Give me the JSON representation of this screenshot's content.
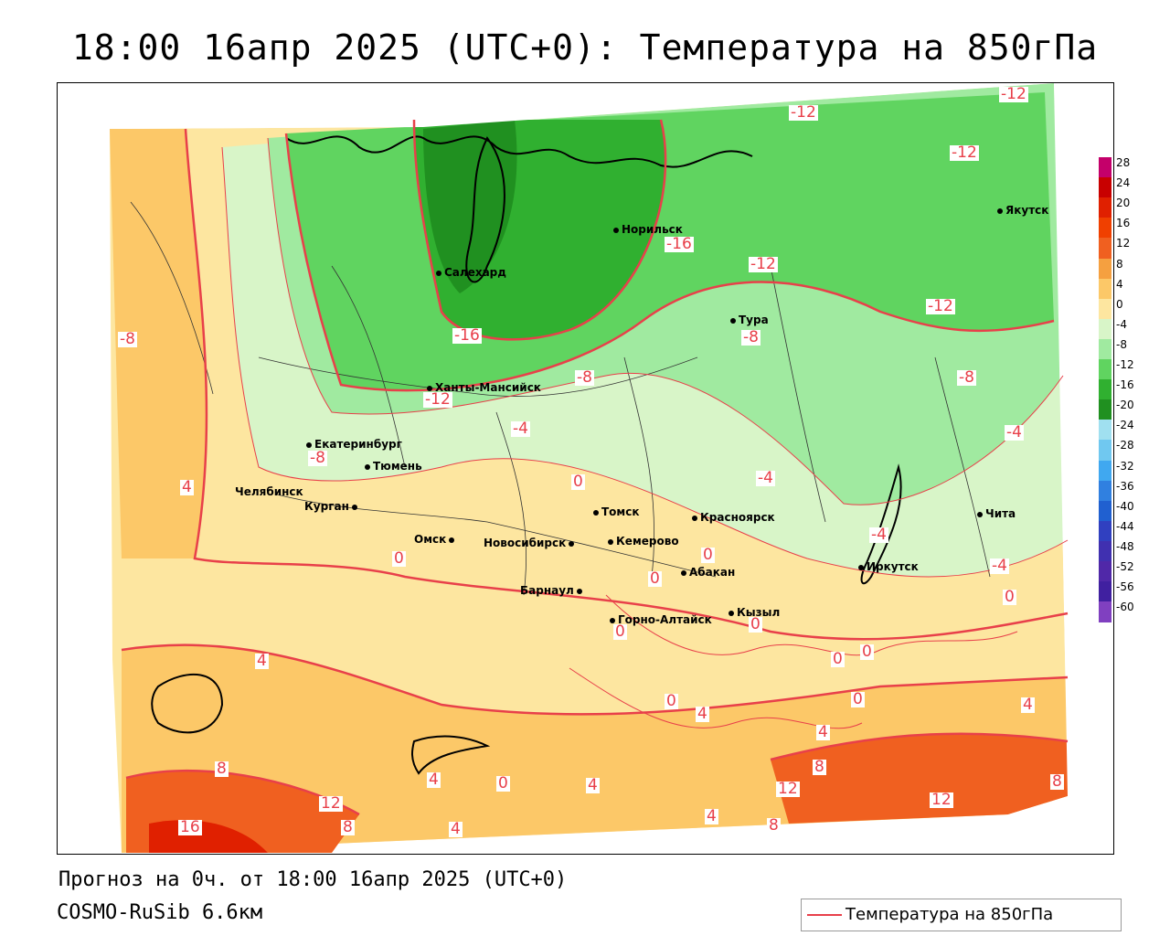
{
  "title": "18:00 16апр 2025 (UTC+0): Температура на 850гПа",
  "footer": {
    "forecast": "Прогноз на 0ч. от 18:00 16апр 2025 (UTC+0)",
    "model": "COSMO-RuSib 6.6км"
  },
  "legend": {
    "label": "Температура на 850гПа",
    "line_color": "#e8404a"
  },
  "colorbar": {
    "ticks": [
      "28",
      "24",
      "20",
      "16",
      "12",
      "8",
      "4",
      "0",
      "-4",
      "-8",
      "-12",
      "-16",
      "-20",
      "-24",
      "-28",
      "-32",
      "-36",
      "-40",
      "-44",
      "-48",
      "-52",
      "-56",
      "-60"
    ],
    "colors": [
      "#c4006a",
      "#c80000",
      "#e02000",
      "#f04000",
      "#f06020",
      "#f5a040",
      "#fcc868",
      "#fde6a0",
      "#d8f5c8",
      "#a0eaa0",
      "#60d460",
      "#30b030",
      "#209020",
      "#a0e0f0",
      "#70c8f0",
      "#40a8f0",
      "#3080e0",
      "#2060d0",
      "#3040c0",
      "#4030b0",
      "#5028a8",
      "#4020a0",
      "#8040c0"
    ]
  },
  "cities": [
    {
      "name": "Салехард"
    },
    {
      "name": "Норильск"
    },
    {
      "name": "Якутск"
    },
    {
      "name": "Тура"
    },
    {
      "name": "Ханты-Мансийск"
    },
    {
      "name": "Екатеринбург"
    },
    {
      "name": "Тюмень"
    },
    {
      "name": "Челябинск"
    },
    {
      "name": "Курган"
    },
    {
      "name": "Омск"
    },
    {
      "name": "Новосибирск"
    },
    {
      "name": "Томск"
    },
    {
      "name": "Кемерово"
    },
    {
      "name": "Красноярск"
    },
    {
      "name": "Абакан"
    },
    {
      "name": "Барнаул"
    },
    {
      "name": "Горно-Алтайск"
    },
    {
      "name": "Кызыл"
    },
    {
      "name": "Иркутск"
    },
    {
      "name": "Чита"
    }
  ],
  "contour_labels": [
    "-12",
    "-12",
    "-12",
    "-16",
    "-12",
    "-16",
    "-12",
    "-12",
    "-8",
    "-8",
    "-8",
    "-4",
    "-4",
    "-8",
    "-4",
    "-4",
    "0",
    "0",
    "0",
    "0",
    "0",
    "0",
    "0",
    "0",
    "0",
    "0",
    "0",
    "0",
    "4",
    "4",
    "4",
    "4",
    "4",
    "4",
    "4",
    "4",
    "4",
    "8",
    "8",
    "8",
    "8",
    "12",
    "12",
    "12",
    "16",
    "8",
    "-4",
    "-8"
  ]
}
